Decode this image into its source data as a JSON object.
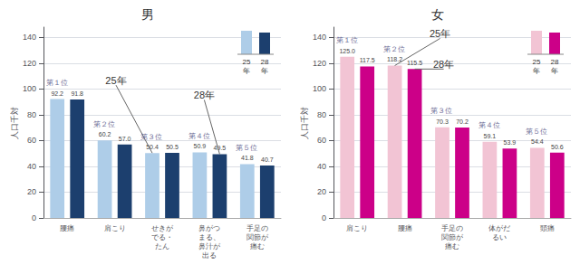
{
  "chart_data": [
    {
      "type": "bar",
      "title": "男",
      "categories": [
        "腰痛",
        "肩こり",
        "せきが\nでる・\nたん",
        "鼻がつ\nまる、\n鼻汁が\n出る",
        "手足の\n関節が\n痛む"
      ],
      "series": [
        {
          "name": "25\n年",
          "color": "#aecde8",
          "values": [
            92.2,
            60.2,
            50.4,
            50.9,
            41.8
          ],
          "value_labels": [
            "92.2",
            "60.2",
            "50.4",
            "50.9",
            "41.8"
          ]
        },
        {
          "name": "28\n年",
          "color": "#1c3f6e",
          "values": [
            91.8,
            57.0,
            50.5,
            49.5,
            40.7
          ],
          "value_labels": [
            "91.8",
            "57.0",
            "50.5",
            "49.5",
            "40.7"
          ]
        }
      ],
      "ylabel": "人口千対",
      "ylim": [
        0,
        148
      ],
      "yticks": [
        0,
        20,
        40,
        60,
        80,
        100,
        120,
        140
      ],
      "grid": true,
      "data_labels": true,
      "legend": "upper right",
      "annotations": [
        {
          "text": "第１位",
          "category": "腰痛"
        },
        {
          "text": "第２位",
          "category": "肩こり"
        },
        {
          "text": "第３位",
          "category": "せきが\nでる・\nたん"
        },
        {
          "text": "第４位",
          "category": "鼻がつ\nまる、\n鼻汁が\n出る"
        },
        {
          "text": "第５位",
          "category": "手足の\n関節が\n痛む"
        },
        {
          "text": "25年",
          "series": "25\n年",
          "category": "せきが\nでる・\nたん"
        },
        {
          "text": "28年",
          "series": "28\n年",
          "category": "鼻がつ\nまる、\n鼻汁が\n出る"
        }
      ]
    },
    {
      "type": "bar",
      "title": "女",
      "categories": [
        "肩こり",
        "腰痛",
        "手足の\n関節が\n痛む",
        "体がだ\nるい",
        "頭痛"
      ],
      "series": [
        {
          "name": "25\n年",
          "color": "#f2c4d4",
          "values": [
            125.0,
            118.2,
            70.3,
            59.1,
            54.4
          ],
          "value_labels": [
            "125.0",
            "118.2",
            "70.3",
            "59.1",
            "54.4"
          ]
        },
        {
          "name": "28\n年",
          "color": "#cc0088",
          "values": [
            117.5,
            115.5,
            70.2,
            53.9,
            50.6
          ],
          "value_labels": [
            "117.5",
            "115.5",
            "70.2",
            "53.9",
            "50.6"
          ]
        }
      ],
      "ylabel": "人口千対",
      "ylim": [
        0,
        148
      ],
      "yticks": [
        0,
        20,
        40,
        60,
        80,
        100,
        120,
        140
      ],
      "grid": true,
      "data_labels": true,
      "legend": "upper right",
      "annotations": [
        {
          "text": "第１位",
          "category": "肩こり"
        },
        {
          "text": "第２位",
          "category": "腰痛"
        },
        {
          "text": "第３位",
          "category": "手足の\n関節が\n痛む"
        },
        {
          "text": "第４位",
          "category": "体がだ\nるい"
        },
        {
          "text": "第５位",
          "category": "頭痛"
        },
        {
          "text": "25年",
          "series": "25\n年",
          "category": "腰痛"
        },
        {
          "text": "28年",
          "series": "28\n年",
          "category": "腰痛"
        }
      ]
    }
  ]
}
